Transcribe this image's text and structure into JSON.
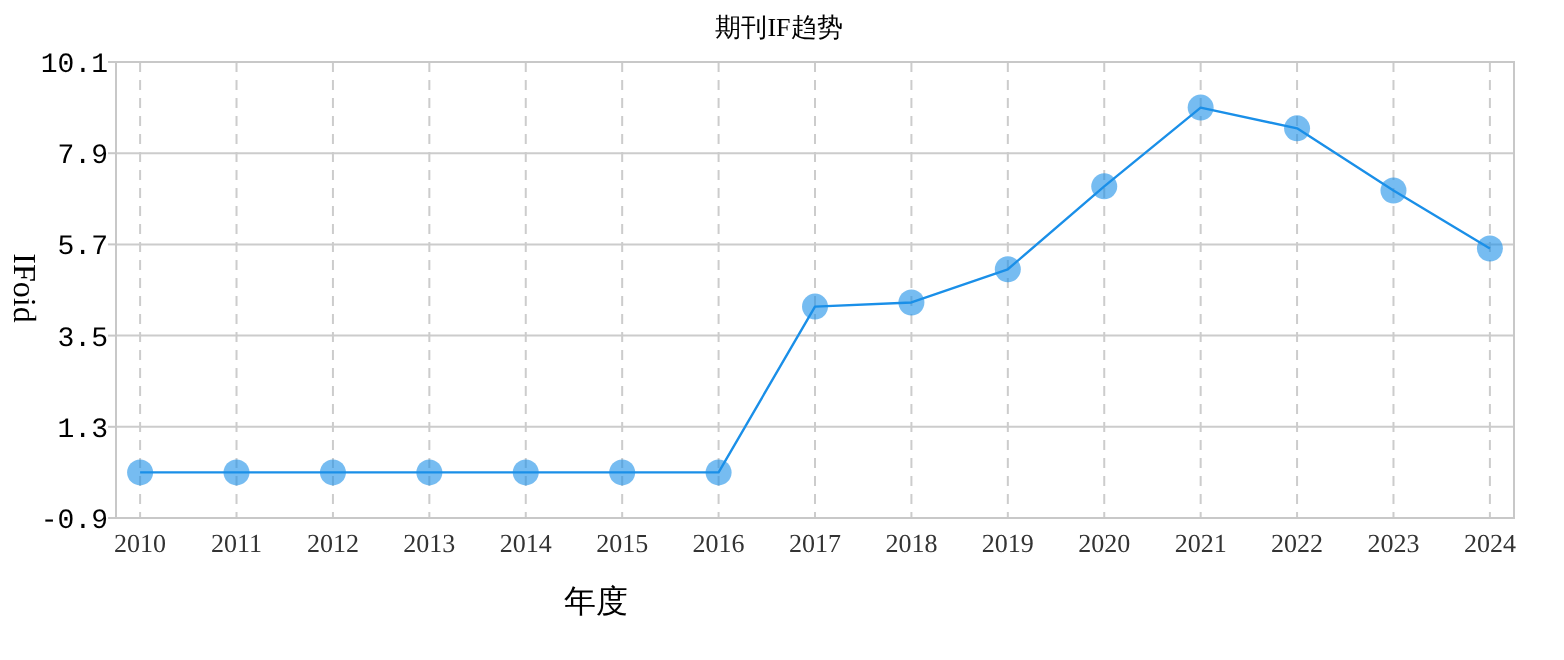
{
  "chart_data": {
    "type": "line",
    "title": "期刊IF趋势",
    "xlabel": "年度",
    "ylabel": "IFoid",
    "categories": [
      "2010",
      "2011",
      "2012",
      "2013",
      "2014",
      "2015",
      "2016",
      "2017",
      "2018",
      "2019",
      "2020",
      "2021",
      "2022",
      "2023",
      "2024"
    ],
    "series": [
      {
        "color": "#1a8fe8",
        "values": [
          0.2,
          0.2,
          0.2,
          0.2,
          0.2,
          0.2,
          0.2,
          4.2,
          4.3,
          5.1,
          7.1,
          9.0,
          8.5,
          7.0,
          5.6
        ]
      }
    ],
    "ylim": [
      -0.9,
      10.1
    ],
    "yticks": [
      -0.9,
      1.3,
      3.5,
      5.7,
      7.9,
      10.1
    ],
    "grid": true,
    "marker": "circle",
    "line_style": "solid"
  }
}
